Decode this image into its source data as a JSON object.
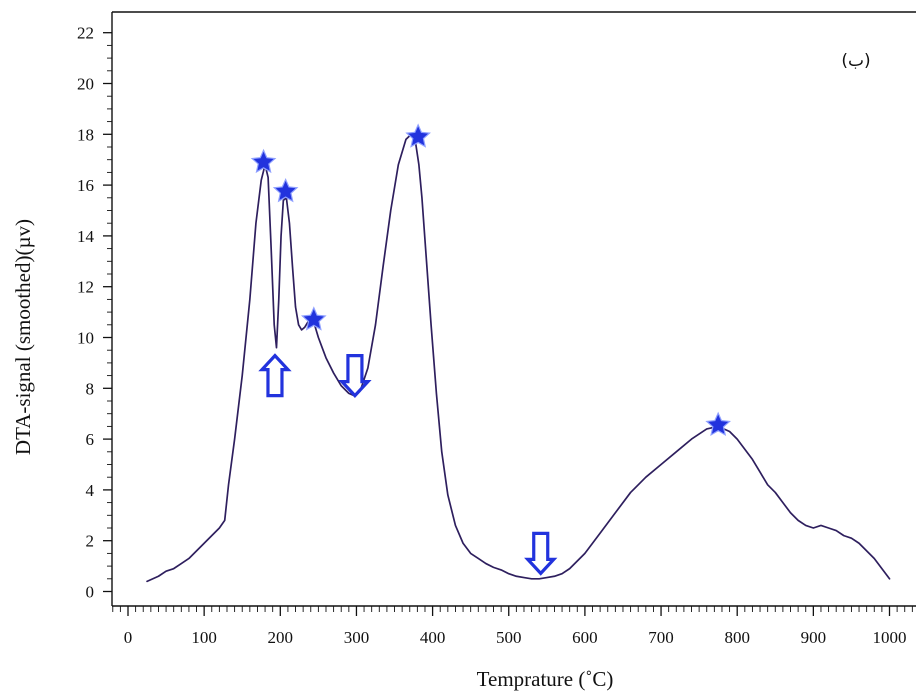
{
  "chart_data": {
    "type": "line",
    "title": "",
    "panel_label": "(ب)",
    "xlabel": "Temprature (˚C)",
    "ylabel": "DTA-signal (smoothed)(µv)",
    "xlim": [
      0,
      1000
    ],
    "ylim": [
      -0.9,
      22.5
    ],
    "x_ticks": [
      0,
      100,
      200,
      300,
      400,
      500,
      600,
      700,
      800,
      900,
      1000
    ],
    "y_ticks": [
      0,
      2,
      4,
      6,
      8,
      10,
      12,
      14,
      16,
      18,
      20,
      22
    ],
    "grid": false,
    "legend": "none",
    "series": [
      {
        "color": "#2e1f5e",
        "x": [
          25,
          40,
          50,
          60,
          70,
          80,
          90,
          100,
          110,
          120,
          127,
          132,
          140,
          150,
          160,
          168,
          175,
          180,
          184,
          188,
          192,
          195,
          198,
          201,
          204,
          208,
          212,
          216,
          220,
          224,
          228,
          232,
          236,
          240,
          245,
          250,
          255,
          260,
          270,
          280,
          290,
          298,
          305,
          315,
          325,
          335,
          345,
          355,
          365,
          372,
          378,
          382,
          386,
          392,
          398,
          405,
          412,
          420,
          430,
          440,
          450,
          460,
          470,
          480,
          490,
          500,
          510,
          520,
          530,
          540,
          550,
          560,
          570,
          580,
          600,
          620,
          640,
          660,
          680,
          700,
          720,
          740,
          760,
          775,
          790,
          800,
          810,
          820,
          830,
          840,
          850,
          860,
          870,
          880,
          890,
          900,
          910,
          920,
          930,
          940,
          950,
          960,
          970,
          980,
          990,
          1000
        ],
        "y": [
          0.4,
          0.6,
          0.8,
          0.9,
          1.1,
          1.3,
          1.6,
          1.9,
          2.2,
          2.5,
          2.8,
          4.2,
          6.0,
          8.5,
          11.5,
          14.5,
          16.2,
          16.8,
          16.3,
          13.5,
          10.5,
          9.6,
          11.5,
          14.0,
          15.4,
          15.5,
          14.5,
          12.8,
          11.2,
          10.5,
          10.3,
          10.4,
          10.6,
          10.7,
          10.5,
          10.0,
          9.6,
          9.2,
          8.6,
          8.1,
          7.8,
          7.7,
          7.9,
          8.8,
          10.5,
          12.8,
          15.0,
          16.8,
          17.8,
          18.0,
          17.6,
          16.8,
          15.5,
          13.0,
          10.5,
          7.8,
          5.5,
          3.8,
          2.6,
          1.9,
          1.5,
          1.3,
          1.1,
          0.95,
          0.85,
          0.7,
          0.6,
          0.55,
          0.5,
          0.5,
          0.55,
          0.6,
          0.7,
          0.9,
          1.5,
          2.3,
          3.1,
          3.9,
          4.5,
          5.0,
          5.5,
          6.0,
          6.4,
          6.5,
          6.3,
          6.0,
          5.6,
          5.2,
          4.7,
          4.2,
          3.9,
          3.5,
          3.1,
          2.8,
          2.6,
          2.5,
          2.6,
          2.5,
          2.4,
          2.2,
          2.1,
          1.9,
          1.6,
          1.3,
          0.9,
          0.5
        ]
      }
    ],
    "markers": {
      "stars": [
        {
          "x": 178,
          "y": 16.9
        },
        {
          "x": 207,
          "y": 15.75
        },
        {
          "x": 244,
          "y": 10.7
        },
        {
          "x": 381,
          "y": 17.9
        },
        {
          "x": 775,
          "y": 6.55
        }
      ],
      "arrows_up": [
        {
          "x": 193,
          "y": 8.5
        }
      ],
      "arrows_down": [
        {
          "x": 298,
          "y": 8.5
        },
        {
          "x": 542,
          "y": 1.5
        }
      ],
      "color": "#2233dd"
    }
  }
}
